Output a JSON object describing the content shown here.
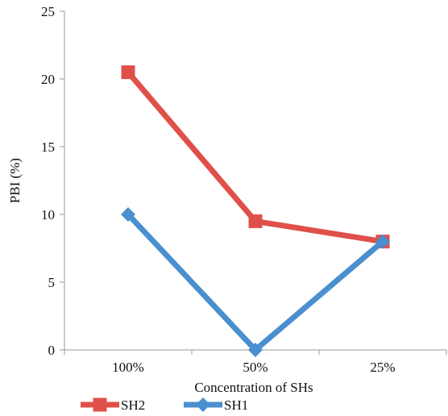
{
  "chart_data": {
    "type": "line",
    "title": "",
    "xlabel": "Concentration of SHs",
    "ylabel": "PBI (%)",
    "categories": [
      "100%",
      "50%",
      "25%"
    ],
    "ylim": [
      0,
      25
    ],
    "yticks": [
      0,
      5,
      10,
      15,
      20,
      25
    ],
    "ytick_labels": [
      "0",
      "5",
      "10",
      "15",
      "20",
      "25"
    ],
    "grid": false,
    "legend_position": "bottom-left",
    "series": [
      {
        "name": "SH2",
        "values": [
          20.5,
          9.5,
          8.0
        ],
        "color": "#e0504a",
        "marker": "square"
      },
      {
        "name": "SH1",
        "values": [
          10.0,
          0.0,
          8.0
        ],
        "color": "#4a8fcf",
        "marker": "diamond"
      }
    ]
  }
}
